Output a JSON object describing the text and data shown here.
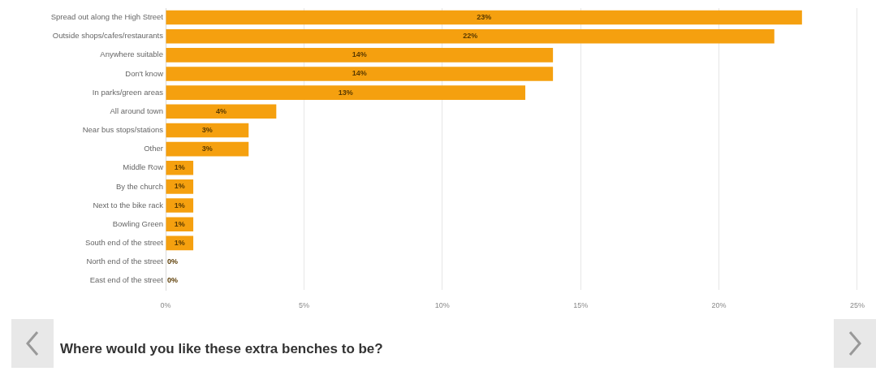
{
  "chart_data": {
    "type": "bar",
    "orientation": "horizontal",
    "title": "Where would you like these extra benches to be?",
    "categories": [
      "Spread out along the High Street",
      "Outside shops/cafes/restaurants",
      "Anywhere suitable",
      "Don't know",
      "In parks/green areas",
      "All around town",
      "Near bus stops/stations",
      "Other",
      "Middle Row",
      "By the church",
      "Next to the bike rack",
      "Bowling Green",
      "South end of the street",
      "North end of the street",
      "East end of the street"
    ],
    "values": [
      23,
      22,
      14,
      14,
      13,
      4,
      3,
      3,
      1,
      1,
      1,
      1,
      1,
      0,
      0
    ],
    "value_labels": [
      "23%",
      "22%",
      "14%",
      "14%",
      "13%",
      "4%",
      "3%",
      "3%",
      "1%",
      "1%",
      "1%",
      "1%",
      "1%",
      "0%",
      "0%"
    ],
    "color": "#f5a00f",
    "xlim": [
      0,
      25
    ],
    "xticks": [
      {
        "value": 0,
        "label": "0%"
      },
      {
        "value": 5,
        "label": "5%"
      },
      {
        "value": 10,
        "label": "10%"
      },
      {
        "value": 15,
        "label": "15%"
      },
      {
        "value": 20,
        "label": "20%"
      },
      {
        "value": 25,
        "label": "25%"
      }
    ],
    "grid": "x",
    "legend": false
  }
}
